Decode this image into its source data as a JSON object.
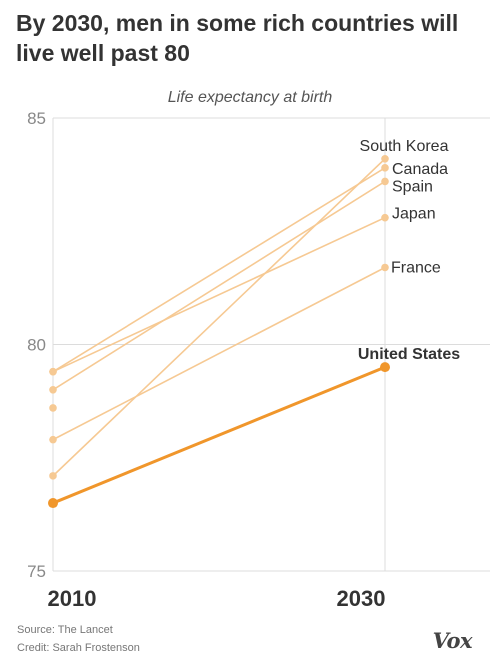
{
  "header": {
    "title": "By 2030, men in some rich countries will live well past 80",
    "subtitle": "Life expectancy at birth"
  },
  "chart_data": {
    "type": "line",
    "title": "By 2030, men in some rich countries will live well past 80",
    "subtitle": "Life expectancy at birth",
    "x": [
      2010,
      2030
    ],
    "xlabel": "",
    "ylabel": "",
    "ylim": [
      75,
      85
    ],
    "yticks": [
      75,
      80,
      85
    ],
    "grid": true,
    "series": [
      {
        "name": "South Korea",
        "values": [
          77.1,
          84.1
        ],
        "color": "#f6c993"
      },
      {
        "name": "Canada",
        "values": [
          79.4,
          83.9
        ],
        "color": "#f6c993"
      },
      {
        "name": "Spain",
        "values": [
          79.0,
          83.6
        ],
        "color": "#f6c993"
      },
      {
        "name": "Japan",
        "values": [
          79.4,
          82.8
        ],
        "color": "#f6c993"
      },
      {
        "name": "France",
        "values": [
          77.9,
          81.7
        ],
        "color": "#f6c993"
      },
      {
        "name": "United States",
        "values": [
          76.5,
          79.5
        ],
        "color": "#f0962b"
      }
    ],
    "unlabeled_2010_points": [
      78.6
    ]
  },
  "footer": {
    "source": "Source: The Lancet",
    "credit": "Credit: Sarah Frostenson",
    "logo": "Vox"
  }
}
